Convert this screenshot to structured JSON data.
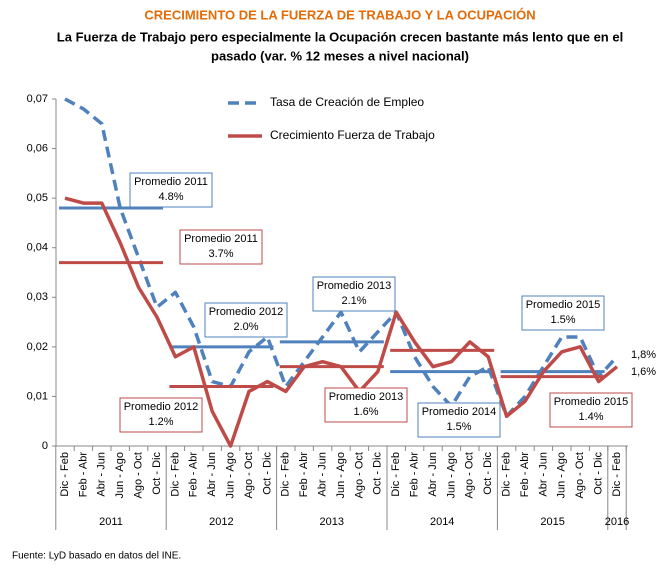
{
  "chart_data": {
    "type": "line",
    "title": "CRECIMIENTO DE LA FUERZA DE TRABAJO Y LA OCUPACIÓN",
    "subtitle": [
      "La Fuerza de Trabajo pero especialmente la Ocupación crecen bastante más lento que en el",
      "pasado  (var. % 12 meses a nivel nacional)"
    ],
    "source": "Fuente: LyD basado en datos del INE.",
    "categories": [
      "Dic - Feb",
      "Feb - Abr",
      "Abr - Jun",
      "Jun - Ago",
      "Ago - Oct",
      "Oct - Dic",
      "Dic - Feb",
      "Feb - Abr",
      "Abr - Jun",
      "Jun - Ago",
      "Ago - Oct",
      "Oct - Dic",
      "Dic - Feb",
      "Feb - Abr",
      "Abr - Jun",
      "Jun - Ago",
      "Ago - Oct",
      "Oct - Dic",
      "Dic - Feb",
      "Feb - Abr",
      "Abr - Jun",
      "Jun - Ago",
      "Ago - Oct",
      "Oct - Dic",
      "Dic - Feb",
      "Feb - Abr",
      "Abr - Jun",
      "Jun - Ago",
      "Ago - Oct",
      "Oct - Dic",
      "Dic - Feb"
    ],
    "years": [
      "2011",
      "2012",
      "2013",
      "2014",
      "2015",
      "2016"
    ],
    "ylim": [
      0,
      0.07
    ],
    "yticks": [
      {
        "value": 0,
        "label": "0"
      },
      {
        "value": 0.01,
        "label": "0,01"
      },
      {
        "value": 0.02,
        "label": "0,02"
      },
      {
        "value": 0.03,
        "label": "0,03"
      },
      {
        "value": 0.04,
        "label": "0,04"
      },
      {
        "value": 0.05,
        "label": "0,05"
      },
      {
        "value": 0.06,
        "label": "0,06"
      },
      {
        "value": 0.07,
        "label": "0,07"
      }
    ],
    "grid": false,
    "series": [
      {
        "name": "Tasa de Creación de Empleo",
        "color": "#4f81bd",
        "dashed": true,
        "values": [
          0.07,
          0.068,
          0.065,
          0.048,
          0.038,
          0.028,
          0.031,
          0.024,
          0.013,
          0.012,
          0.019,
          0.022,
          0.012,
          0.017,
          0.022,
          0.027,
          0.019,
          0.023,
          0.027,
          0.018,
          0.012,
          0.008,
          0.014,
          0.016,
          0.006,
          0.01,
          0.016,
          0.022,
          0.022,
          0.014,
          0.018
        ],
        "end_label": "1,8%",
        "averages": [
          {
            "value": 0.048,
            "label": [
              "Promedio 2011",
              "4.8%"
            ]
          },
          {
            "value": 0.02,
            "label": [
              "Promedio 2012",
              "2.0%"
            ]
          },
          {
            "value": 0.021,
            "label": [
              "Promedio 2013",
              "2.1%"
            ]
          },
          {
            "value": 0.015,
            "label": [
              "Promedio 2014",
              "1.5%"
            ]
          },
          {
            "value": 0.015,
            "label": [
              "Promedio 2015",
              "1.5%"
            ]
          }
        ]
      },
      {
        "name": "Crecimiento Fuerza de Trabajo",
        "color": "#be4b48",
        "dashed": false,
        "values": [
          0.05,
          0.049,
          0.049,
          0.041,
          0.032,
          0.026,
          0.018,
          0.02,
          0.007,
          0.0,
          0.011,
          0.013,
          0.011,
          0.016,
          0.017,
          0.016,
          0.011,
          0.015,
          0.027,
          0.021,
          0.016,
          0.017,
          0.021,
          0.018,
          0.006,
          0.009,
          0.015,
          0.019,
          0.02,
          0.013,
          0.016
        ],
        "end_label": "1,6%",
        "averages": [
          {
            "value": 0.037,
            "label": [
              "Promedio 2011",
              "3.7%"
            ]
          },
          {
            "value": 0.012,
            "label": [
              "Promedio 2012",
              "1.2%"
            ]
          },
          {
            "value": 0.016,
            "label": [
              "Promedio 2013",
              "1.6%"
            ]
          },
          {
            "value": 0.0193
          },
          {
            "value": 0.014,
            "label": [
              "Promedio 2015",
              "1.4%"
            ]
          }
        ]
      }
    ]
  }
}
